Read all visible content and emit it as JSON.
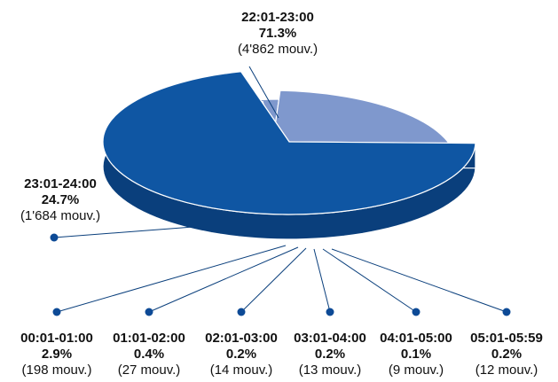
{
  "chart_data": {
    "type": "pie",
    "categories": [
      "22:01-23:00",
      "23:01-24:00",
      "00:01-01:00",
      "01:01-02:00",
      "02:01-03:00",
      "03:01-04:00",
      "04:01-05:00",
      "05:01-05:59"
    ],
    "values": [
      71.3,
      24.7,
      2.9,
      0.4,
      0.2,
      0.2,
      0.1,
      0.2
    ],
    "percent_labels": [
      "71.3%",
      "24.7%",
      "2.9%",
      "0.4%",
      "0.2%",
      "0.2%",
      "0.1%",
      "0.2%"
    ],
    "count_labels": [
      "(4'862 mouv.)",
      "(1'684 mouv.)",
      "(198 mouv.)",
      "(27 mouv.)",
      "(14 mouv.)",
      "(13 mouv.)",
      "(9 mouv.)",
      "(12 mouv.)"
    ],
    "colors": {
      "dark_top": "#0f56a3",
      "dark_side": "#0a3f7c",
      "light_top": "#7f98cd",
      "light_side": "#5a74b0",
      "leader": "#0a3f7c",
      "dot": "#0d4a96"
    }
  }
}
